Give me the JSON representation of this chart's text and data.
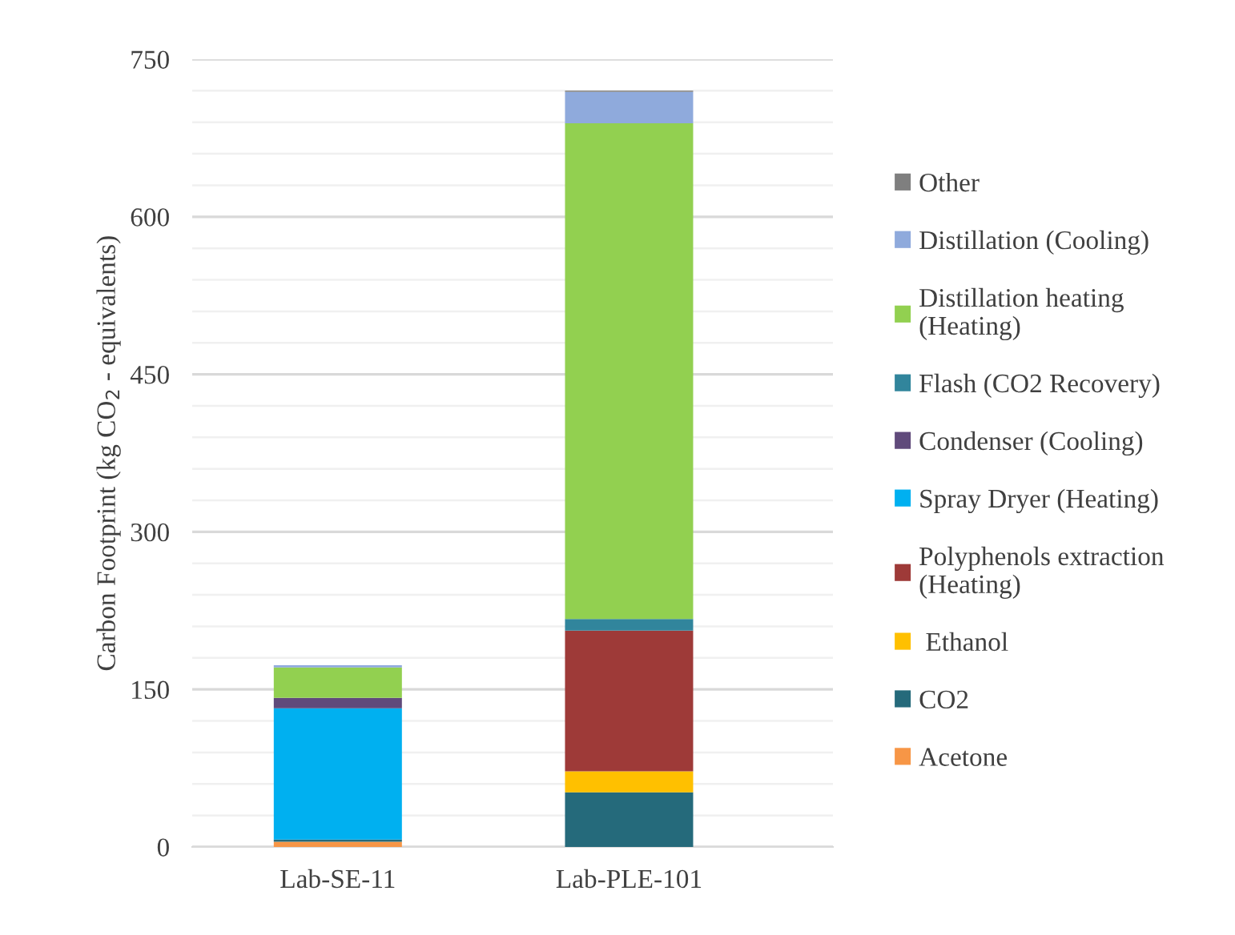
{
  "chart_data": {
    "type": "bar",
    "stacked": true,
    "ylabel": "Carbon Footprint (kg CO$_{2}$ - equivalents)",
    "categories": [
      "Lab-SE-11",
      "Lab-PLE-101"
    ],
    "series": [
      {
        "name": "Acetone",
        "color": "#f79646",
        "values": [
          5,
          0
        ]
      },
      {
        "name": "CO2",
        "color": "#256a7b",
        "values": [
          2,
          52
        ]
      },
      {
        "name": " Ethanol",
        "color": "#ffc000",
        "values": [
          0,
          20
        ]
      },
      {
        "name": "Polyphenols extraction\n(Heating)",
        "color": "#9e3a38",
        "values": [
          0,
          134
        ]
      },
      {
        "name": "Spray Dryer (Heating)",
        "color": "#00b0f0",
        "values": [
          125,
          0
        ]
      },
      {
        "name": "Condenser (Cooling)",
        "color": "#604a7b",
        "values": [
          10,
          0
        ]
      },
      {
        "name": "Flash (CO2 Recovery)",
        "color": "#31859c",
        "values": [
          0,
          11
        ]
      },
      {
        "name": "Distillation heating\n(Heating)",
        "color": "#92d050",
        "values": [
          29,
          472
        ]
      },
      {
        "name": "Distillation (Cooling)",
        "color": "#8faadc",
        "values": [
          2,
          30
        ]
      },
      {
        "name": "Other",
        "color": "#7f7f7f",
        "values": [
          0,
          1
        ]
      }
    ],
    "ylim": [
      0,
      750
    ],
    "yticks": [
      0,
      {
        "value": 30,
        "label": null
      },
      {
        "value": 60,
        "label": null
      },
      {
        "value": 90,
        "label": null
      },
      {
        "value": 120,
        "label": null
      },
      150,
      {
        "value": 180,
        "label": null
      },
      {
        "value": 210,
        "label": null
      },
      {
        "value": 240,
        "label": null
      },
      {
        "value": 270,
        "label": null
      },
      300,
      {
        "value": 330,
        "label": null
      },
      {
        "value": 360,
        "label": null
      },
      {
        "value": 390,
        "label": null
      },
      {
        "value": 420,
        "label": null
      },
      450,
      {
        "value": 480,
        "label": null
      },
      {
        "value": 510,
        "label": null
      },
      {
        "value": 540,
        "label": null
      },
      {
        "value": 570,
        "label": null
      },
      600,
      {
        "value": 630,
        "label": null
      },
      {
        "value": 660,
        "label": null
      },
      {
        "value": 690,
        "label": null
      },
      {
        "value": 720,
        "label": null
      },
      750
    ],
    "grid": "y",
    "legend": "right"
  }
}
